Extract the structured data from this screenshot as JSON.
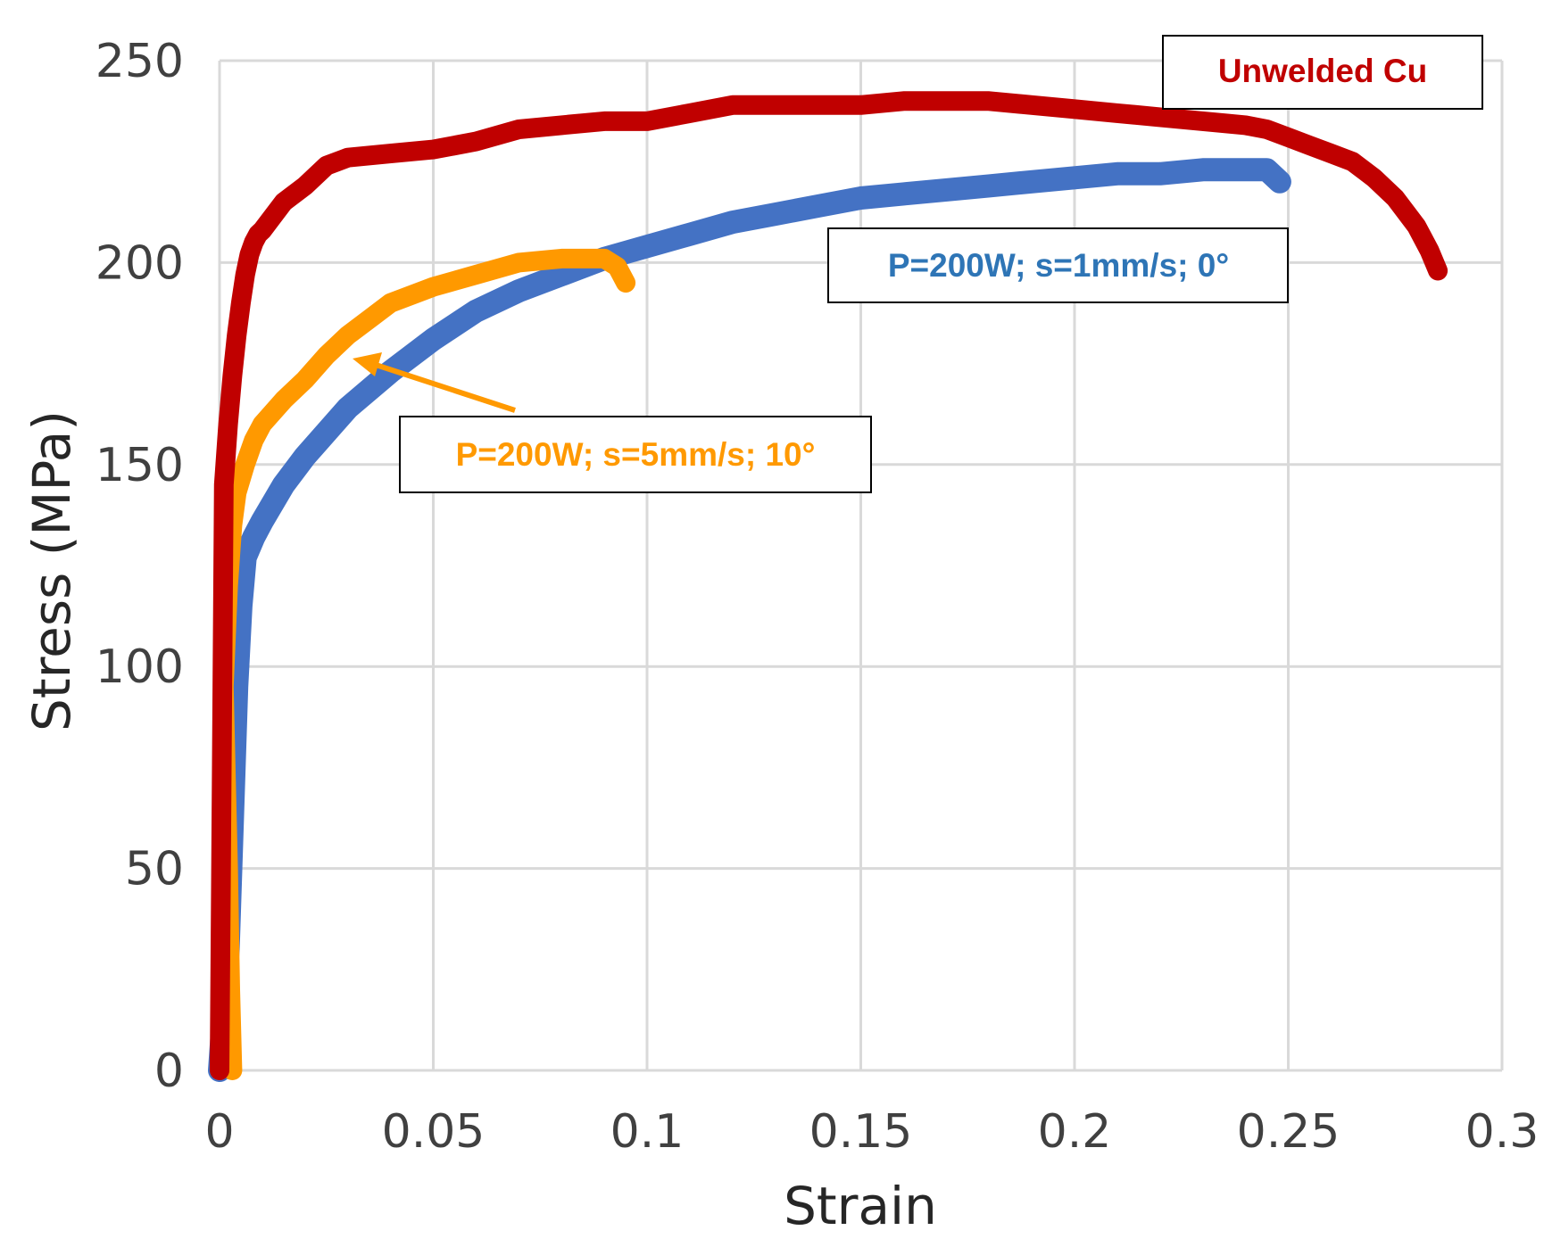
{
  "chart_data": {
    "type": "line",
    "title": "",
    "xlabel": "Strain",
    "ylabel": "Stress (MPa)",
    "xlim": [
      0,
      0.3
    ],
    "ylim": [
      0,
      250
    ],
    "xticks": [
      0,
      0.05,
      0.1,
      0.15,
      0.2,
      0.25,
      0.3
    ],
    "yticks": [
      0,
      50,
      100,
      150,
      200,
      250
    ],
    "xtick_labels": [
      "0",
      "0.05",
      "0.1",
      "0.15",
      "0.2",
      "0.25",
      "0.3"
    ],
    "ytick_labels": [
      "0",
      "50",
      "100",
      "150",
      "200",
      "250"
    ],
    "grid": true,
    "legend": "none",
    "series": [
      {
        "name": "Unwelded Cu",
        "color": "#c00000",
        "x": [
          0.0,
          0.001,
          0.002,
          0.003,
          0.004,
          0.005,
          0.006,
          0.007,
          0.008,
          0.009,
          0.01,
          0.015,
          0.02,
          0.025,
          0.03,
          0.04,
          0.05,
          0.06,
          0.07,
          0.08,
          0.09,
          0.1,
          0.11,
          0.12,
          0.13,
          0.14,
          0.15,
          0.16,
          0.17,
          0.18,
          0.19,
          0.2,
          0.21,
          0.22,
          0.23,
          0.24,
          0.245,
          0.25,
          0.255,
          0.26,
          0.265,
          0.27,
          0.275,
          0.28,
          0.283,
          0.285
        ],
        "values": [
          0,
          145,
          160,
          172,
          182,
          190,
          197,
          202,
          205,
          207,
          208,
          215,
          219,
          224,
          226,
          227,
          228,
          230,
          233,
          234,
          235,
          235,
          237,
          239,
          239,
          239,
          239,
          240,
          240,
          240,
          239,
          238,
          237,
          236,
          235,
          234,
          233,
          231,
          229,
          227,
          225,
          221,
          216,
          209,
          203,
          198
        ]
      },
      {
        "name": "P=200W; s=1mm/s; 0°",
        "color": "#4472c4",
        "x": [
          0.0,
          0.002,
          0.004,
          0.005,
          0.006,
          0.008,
          0.01,
          0.015,
          0.02,
          0.03,
          0.04,
          0.05,
          0.06,
          0.07,
          0.08,
          0.09,
          0.1,
          0.11,
          0.12,
          0.13,
          0.14,
          0.15,
          0.16,
          0.17,
          0.18,
          0.19,
          0.2,
          0.21,
          0.22,
          0.23,
          0.24,
          0.245,
          0.248
        ],
        "values": [
          0,
          30,
          95,
          115,
          127,
          132,
          136,
          145,
          152,
          164,
          173,
          181,
          188,
          193,
          197,
          201,
          204,
          207,
          210,
          212,
          214,
          216,
          217,
          218,
          219,
          220,
          221,
          222,
          222,
          223,
          223,
          223,
          220
        ]
      },
      {
        "name": "P=200W; s=5mm/s; 10°",
        "color": "#ff9900",
        "x": [
          0.003,
          0.0025,
          0.002,
          0.0015,
          0.001,
          0.002,
          0.003,
          0.004,
          0.006,
          0.008,
          0.01,
          0.015,
          0.02,
          0.025,
          0.03,
          0.035,
          0.04,
          0.05,
          0.06,
          0.07,
          0.08,
          0.085,
          0.09,
          0.093,
          0.095
        ],
        "values": [
          0,
          20,
          50,
          72,
          95,
          120,
          135,
          143,
          150,
          156,
          160,
          166,
          171,
          177,
          182,
          186,
          190,
          194,
          197,
          200,
          201,
          201,
          201,
          199,
          195
        ]
      }
    ],
    "annotations": [
      {
        "text": "Unwelded Cu",
        "series": 0
      },
      {
        "text": "P=200W; s=1mm/s; 0°",
        "series": 1
      },
      {
        "text": "P=200W; s=5mm/s; 10°",
        "series": 2,
        "arrow_to": [
          0.032,
          176
        ]
      }
    ]
  }
}
